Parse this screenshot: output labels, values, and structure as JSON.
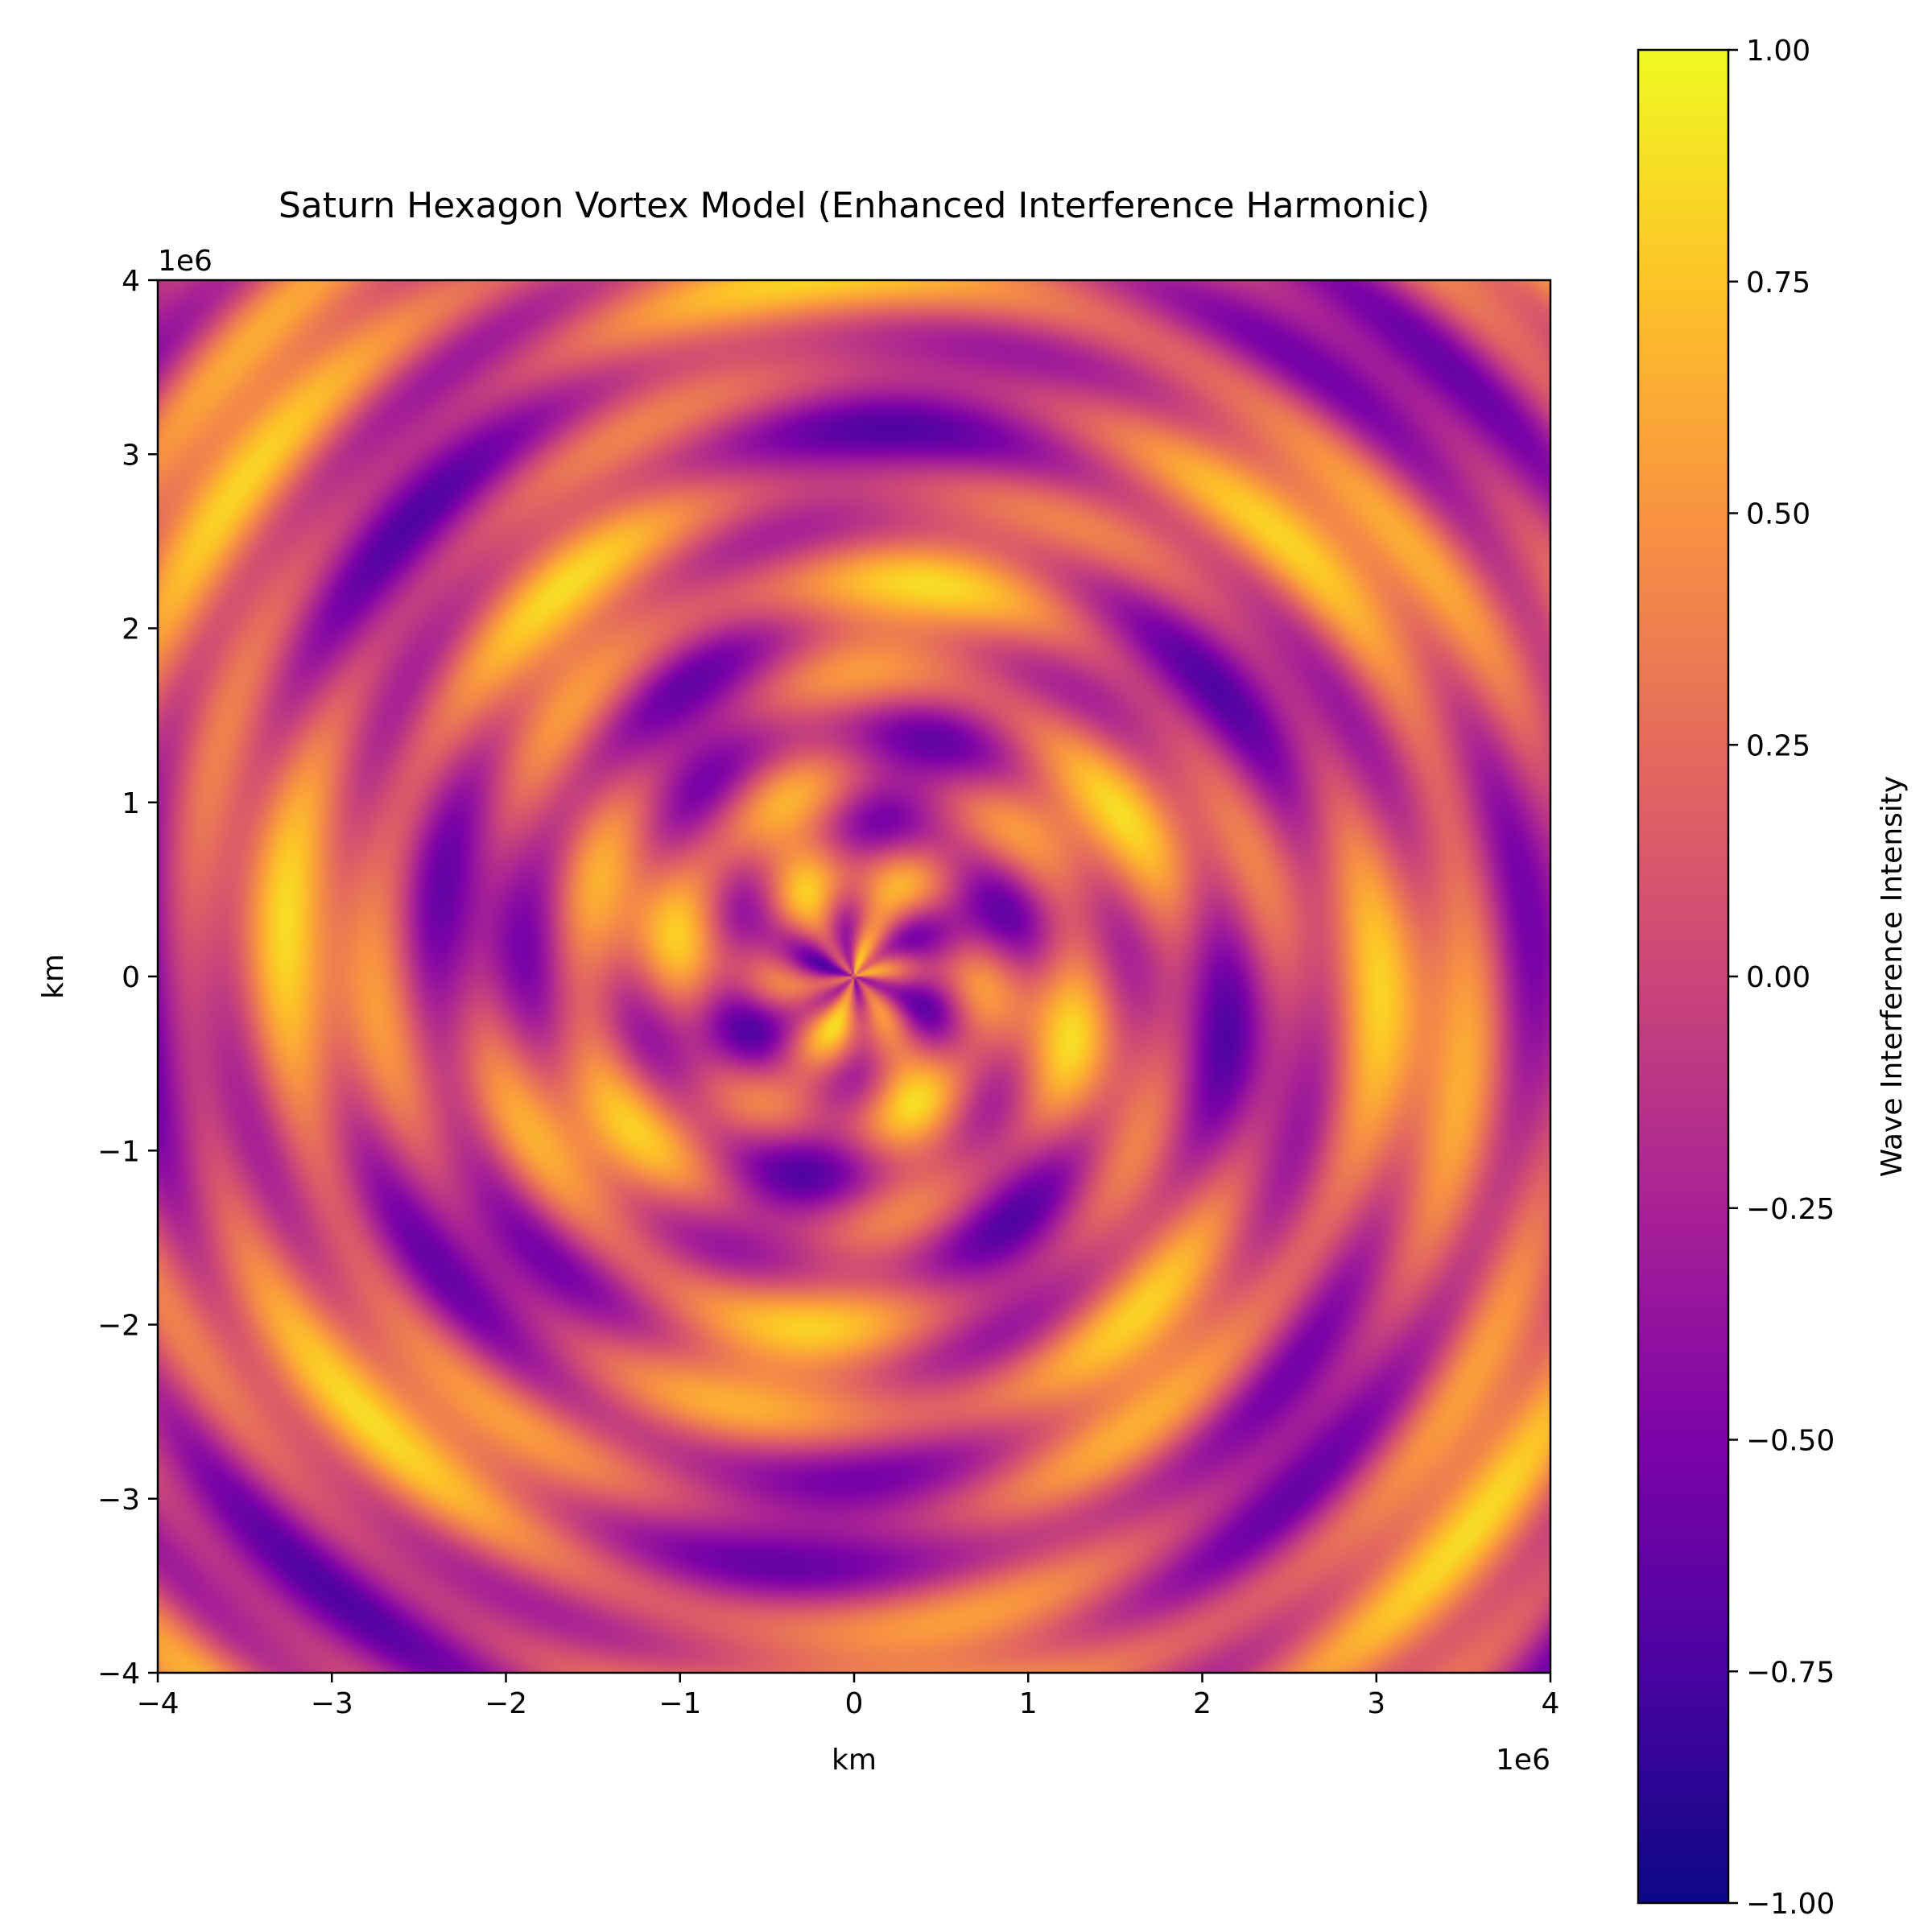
{
  "chart_data": {
    "type": "heatmap",
    "title": "Saturn Hexagon Vortex Model (Enhanced Interference Harmonic)",
    "xlabel": "km",
    "ylabel": "km",
    "x_offset_label": "1e6",
    "y_offset_label": "1e6",
    "xlim": [
      -4,
      4
    ],
    "ylim": [
      -4,
      4
    ],
    "x_ticks": [
      -4,
      -3,
      -2,
      -1,
      0,
      1,
      2,
      3,
      4
    ],
    "y_ticks": [
      -4,
      -3,
      -2,
      -1,
      0,
      1,
      2,
      3,
      4
    ],
    "x_tick_labels": [
      "−4",
      "−3",
      "−2",
      "−1",
      "0",
      "1",
      "2",
      "3",
      "4"
    ],
    "y_tick_labels": [
      "−4",
      "−3",
      "−2",
      "−1",
      "0",
      "1",
      "2",
      "3",
      "4"
    ],
    "colorbar": {
      "label": "Wave Interference Intensity",
      "colormap": "plasma",
      "range": [
        -1.0,
        1.0
      ],
      "ticks": [
        -1.0,
        -0.75,
        -0.5,
        -0.25,
        0.0,
        0.25,
        0.5,
        0.75,
        1.0
      ],
      "tick_labels": [
        "−1.00",
        "−0.75",
        "−0.50",
        "−0.25",
        "0.00",
        "0.25",
        "0.50",
        "0.75",
        "1.00"
      ]
    },
    "grid": false
  }
}
